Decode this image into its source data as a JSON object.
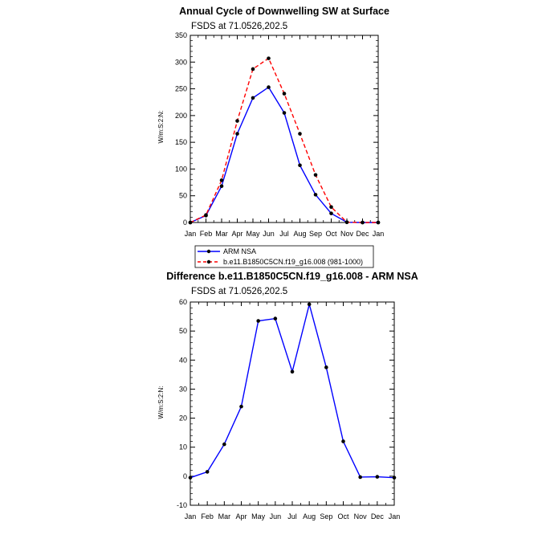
{
  "chart_data": [
    {
      "type": "line",
      "title": "Annual Cycle of Downwelling SW at Surface",
      "subtitle": "FSDS at 71.0526,202.5",
      "ylabel": "W/m:S:2:N:",
      "xlabel": "",
      "categories": [
        "Jan",
        "Feb",
        "Mar",
        "Apr",
        "May",
        "Jun",
        "Jul",
        "Aug",
        "Sep",
        "Oct",
        "Nov",
        "Dec",
        "Jan"
      ],
      "ylim": [
        0,
        350
      ],
      "yticks": [
        0,
        50,
        100,
        150,
        200,
        250,
        300,
        350
      ],
      "series": [
        {
          "name": "ARM NSA",
          "color": "#0000ff",
          "dash": "solid",
          "values": [
            0,
            13,
            68,
            166,
            233,
            253,
            205,
            107,
            52,
            17,
            0.5,
            0,
            0
          ]
        },
        {
          "name": "b.e11.B1850C5CN.f19_g16.008 (981-1000)",
          "color": "#ff0000",
          "dash": "dashed",
          "values": [
            0,
            14,
            79,
            190,
            287,
            307,
            241,
            166,
            89,
            29,
            0.5,
            0,
            0
          ]
        }
      ]
    },
    {
      "type": "line",
      "title": "Difference b.e11.B1850C5CN.f19_g16.008 - ARM NSA",
      "subtitle": "FSDS at 71.0526,202.5",
      "ylabel": "W/m:S:2:N:",
      "xlabel": "",
      "categories": [
        "Jan",
        "Feb",
        "Mar",
        "Apr",
        "May",
        "Jun",
        "Jul",
        "Aug",
        "Sep",
        "Oct",
        "Nov",
        "Dec",
        "Jan"
      ],
      "ylim": [
        -10,
        60
      ],
      "yticks": [
        -10,
        0,
        10,
        20,
        30,
        40,
        50,
        60
      ],
      "series": [
        {
          "name": "Difference",
          "color": "#0000ff",
          "dash": "solid",
          "values": [
            -0.5,
            1.5,
            11,
            24,
            53.5,
            54.3,
            36,
            59.2,
            37.5,
            12,
            -0.3,
            -0.2,
            -0.5
          ]
        }
      ]
    }
  ]
}
